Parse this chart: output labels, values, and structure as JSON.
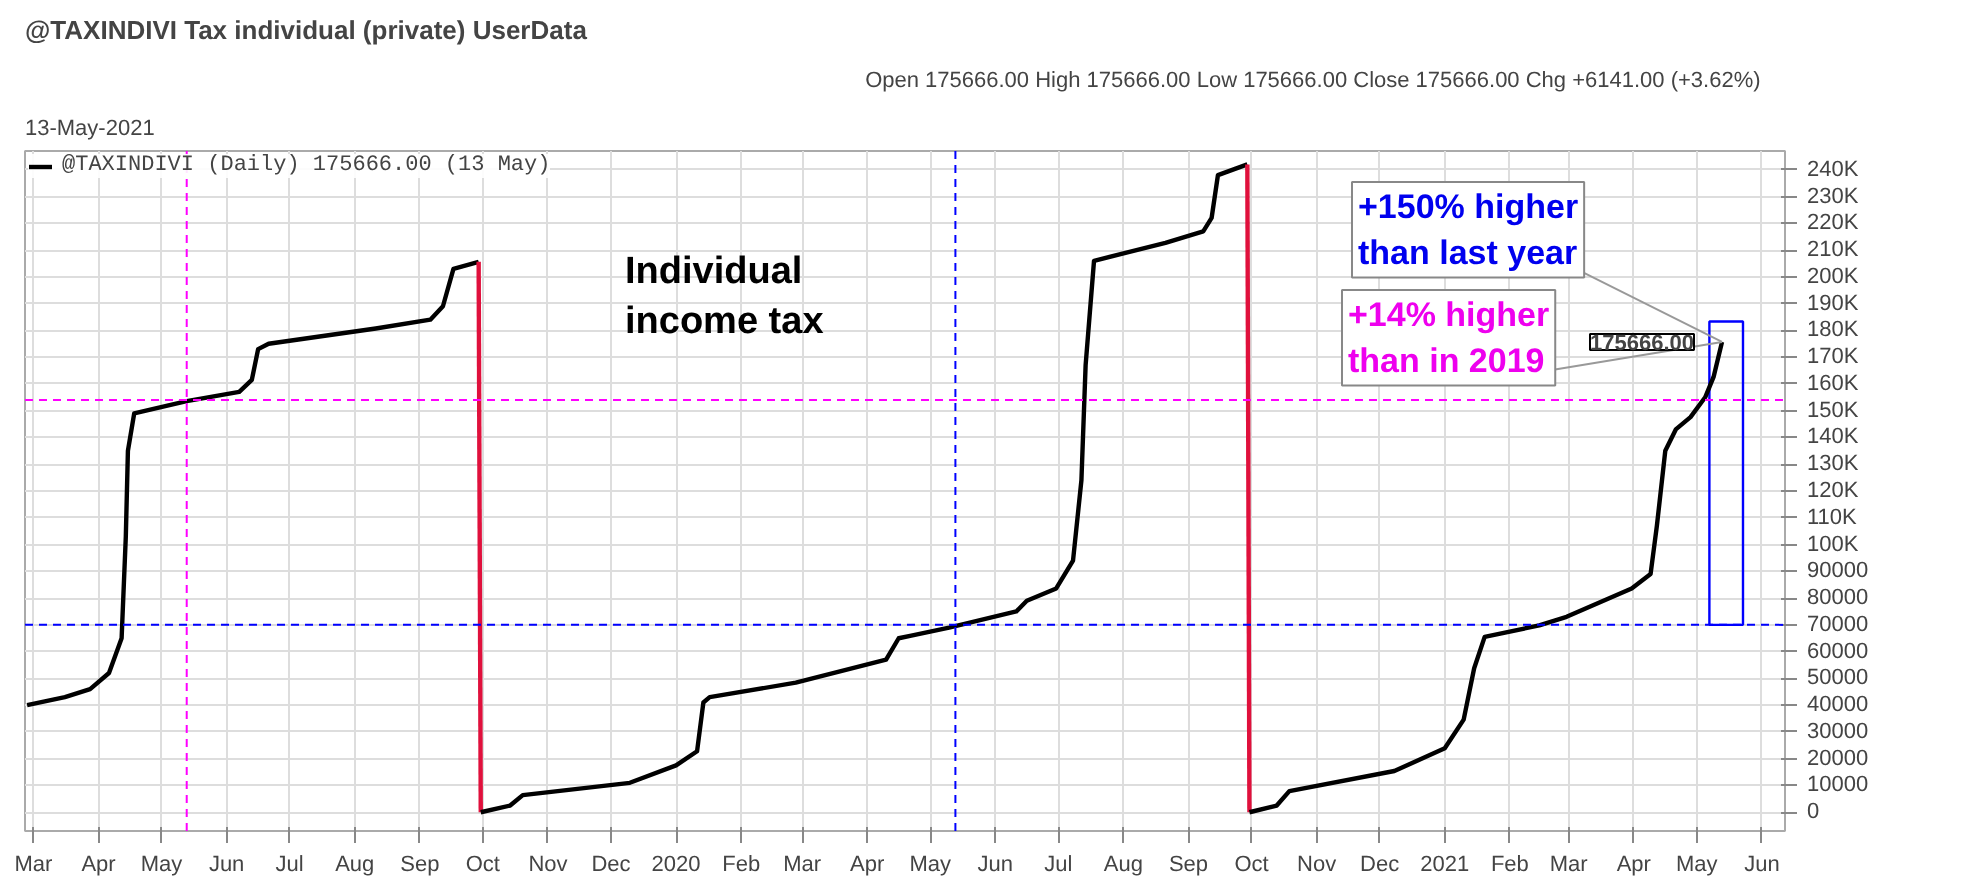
{
  "chart_data": {
    "type": "line",
    "title": "@TAXINDIVI Tax individual (private) UserData",
    "subtitle": "13-May-2021",
    "xlim": [
      "2019-02-25",
      "2021-06-12"
    ],
    "ylim": [
      -7000,
      247000
    ],
    "xticks": [
      {
        "value": "2019-03-01",
        "label": "Mar"
      },
      {
        "value": "2019-04-01",
        "label": "Apr"
      },
      {
        "value": "2019-05-01",
        "label": "May"
      },
      {
        "value": "2019-06-01",
        "label": "Jun"
      },
      {
        "value": "2019-07-01",
        "label": "Jul"
      },
      {
        "value": "2019-08-01",
        "label": "Aug"
      },
      {
        "value": "2019-09-01",
        "label": "Sep"
      },
      {
        "value": "2019-10-01",
        "label": "Oct"
      },
      {
        "value": "2019-11-01",
        "label": "Nov"
      },
      {
        "value": "2019-12-01",
        "label": "Dec"
      },
      {
        "value": "2020-01-01",
        "label": "2020"
      },
      {
        "value": "2020-02-01",
        "label": "Feb"
      },
      {
        "value": "2020-03-01",
        "label": "Mar"
      },
      {
        "value": "2020-04-01",
        "label": "Apr"
      },
      {
        "value": "2020-05-01",
        "label": "May"
      },
      {
        "value": "2020-06-01",
        "label": "Jun"
      },
      {
        "value": "2020-07-01",
        "label": "Jul"
      },
      {
        "value": "2020-08-01",
        "label": "Aug"
      },
      {
        "value": "2020-09-01",
        "label": "Sep"
      },
      {
        "value": "2020-10-01",
        "label": "Oct"
      },
      {
        "value": "2020-11-01",
        "label": "Nov"
      },
      {
        "value": "2020-12-01",
        "label": "Dec"
      },
      {
        "value": "2021-01-01",
        "label": "2021"
      },
      {
        "value": "2021-02-01",
        "label": "Feb"
      },
      {
        "value": "2021-03-01",
        "label": "Mar"
      },
      {
        "value": "2021-04-01",
        "label": "Apr"
      },
      {
        "value": "2021-05-01",
        "label": "May"
      },
      {
        "value": "2021-06-01",
        "label": "Jun"
      }
    ],
    "yticks": [
      0,
      10000,
      20000,
      30000,
      40000,
      50000,
      60000,
      70000,
      80000,
      90000,
      {
        "value": 100000,
        "label": "100K"
      },
      {
        "value": 110000,
        "label": "110K"
      },
      {
        "value": 120000,
        "label": "120K"
      },
      {
        "value": 130000,
        "label": "130K"
      },
      {
        "value": 140000,
        "label": "140K"
      },
      {
        "value": 150000,
        "label": "150K"
      },
      {
        "value": 160000,
        "label": "160K"
      },
      {
        "value": 170000,
        "label": "170K"
      },
      {
        "value": 180000,
        "label": "180K"
      },
      {
        "value": 190000,
        "label": "190K"
      },
      {
        "value": 200000,
        "label": "200K"
      },
      {
        "value": 210000,
        "label": "210K"
      },
      {
        "value": 220000,
        "label": "220K"
      },
      {
        "value": 230000,
        "label": "230K"
      },
      {
        "value": 240000,
        "label": "240K"
      }
    ],
    "grid": true,
    "legend": "top left",
    "marker": "none",
    "line_style": "solid",
    "series": [
      {
        "name": "@TAXINDIVI (Daily) 175666.00 (13 May)",
        "color": "#000000",
        "x": [
          "2019-02-26",
          "2019-03-16",
          "2019-03-28",
          "2019-04-06",
          "2019-04-12",
          "2019-04-14",
          "2019-04-15",
          "2019-04-18",
          "2019-05-13",
          "2019-06-07",
          "2019-06-13",
          "2019-06-16",
          "2019-06-21",
          "2019-08-11",
          "2019-09-06",
          "2019-09-12",
          "2019-09-17",
          "2019-09-29"
        ],
        "values": [
          40000,
          43000,
          46000,
          52000,
          65000,
          103000,
          135000,
          149000,
          153600,
          157000,
          161500,
          173000,
          175000,
          180700,
          184000,
          189000,
          203000,
          205600
        ]
      },
      {
        "color": "#e0103c",
        "x": [
          "2019-09-29",
          "2019-09-30"
        ],
        "values": [
          205600,
          0
        ]
      },
      {
        "color": "#000000",
        "x": [
          "2019-09-30",
          "2019-10-14",
          "2019-10-20",
          "2019-12-10",
          "2020-01-01",
          "2020-01-11",
          "2020-01-14",
          "2020-01-17",
          "2020-02-27",
          "2020-04-10",
          "2020-04-16",
          "2020-04-22",
          "2020-05-10",
          "2020-06-11",
          "2020-06-16",
          "2020-06-30",
          "2020-07-08",
          "2020-07-12",
          "2020-07-14",
          "2020-07-18",
          "2020-08-21",
          "2020-09-08",
          "2020-09-12",
          "2020-09-15",
          "2020-09-29"
        ],
        "values": [
          0,
          2500,
          6400,
          11000,
          17500,
          22800,
          41000,
          43000,
          48400,
          57000,
          65000,
          66000,
          69000,
          75000,
          79000,
          83600,
          94000,
          124000,
          167000,
          206000,
          212700,
          217000,
          222000,
          238000,
          242000
        ]
      },
      {
        "color": "#e0103c",
        "x": [
          "2020-09-29",
          "2020-09-30"
        ],
        "values": [
          242000,
          0
        ]
      },
      {
        "color": "#000000",
        "x": [
          "2020-09-30",
          "2020-10-13",
          "2020-10-19",
          "2020-12-08",
          "2021-01-01",
          "2021-01-10",
          "2021-01-15",
          "2021-01-20",
          "2021-02-15",
          "2021-02-28",
          "2021-03-31",
          "2021-04-09",
          "2021-04-12",
          "2021-04-16",
          "2021-04-21",
          "2021-04-28",
          "2021-05-05",
          "2021-05-09",
          "2021-05-13"
        ],
        "values": [
          0,
          2500,
          7900,
          15400,
          23900,
          34600,
          53800,
          65500,
          69800,
          73000,
          83600,
          89000,
          107000,
          135000,
          143000,
          147600,
          155000,
          162600,
          175666
        ]
      }
    ],
    "ref_lines": [
      {
        "axis": "y",
        "value": 154000,
        "color": "#ff00ff",
        "line_style": "dashed"
      },
      {
        "axis": "y",
        "value": 70000,
        "color": "#0000ff",
        "line_style": "dashed"
      },
      {
        "axis": "x",
        "value": "2019-05-13",
        "color": "#ff00ff",
        "line_style": "dashed"
      },
      {
        "axis": "x",
        "value": "2020-05-13",
        "color": "#0000ff",
        "line_style": "dashed"
      }
    ],
    "annotations": [
      "Open 175666.00  High 175666.00  Low 175666.00  Close 175666.00  Chg +6141.00 (+3.62%)",
      {
        "text": "175666.00",
        "x": "2021-05-13",
        "y": 175666
      },
      "Individual\nincome tax",
      {
        "text": "+150% higher\nthan last year",
        "x": "2021-05-13",
        "y": 175666
      },
      {
        "text": "+14% higher\nthan in 2019",
        "x": "2021-05-13",
        "y": 175666
      }
    ]
  }
}
